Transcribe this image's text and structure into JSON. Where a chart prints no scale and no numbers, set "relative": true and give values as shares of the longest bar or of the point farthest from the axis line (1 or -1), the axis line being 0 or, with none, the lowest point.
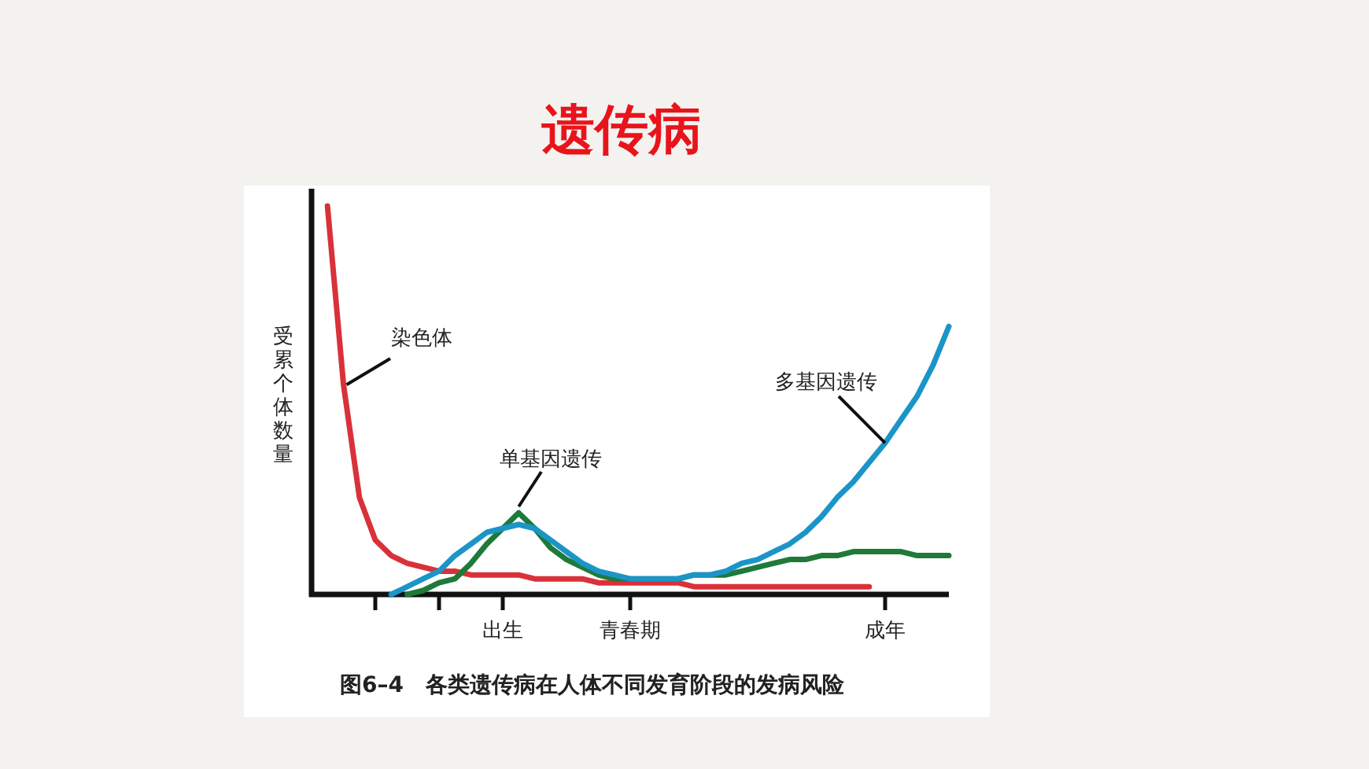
{
  "chart_data": {
    "type": "line",
    "title": "遗传病",
    "ylabel": "受累个体数量",
    "relative": true,
    "categories": [
      null,
      null,
      null,
      null,
      null,
      null,
      null,
      null,
      null,
      null,
      null,
      null,
      "出生",
      null,
      null,
      null,
      null,
      null,
      null,
      null,
      "青春期",
      null,
      null,
      null,
      null,
      null,
      null,
      null,
      null,
      null,
      null,
      null,
      null,
      null,
      null,
      null,
      "成年",
      null,
      null,
      null,
      null
    ],
    "series": [
      {
        "name": "染色体",
        "color": "#d9313a",
        "values": [
          null,
          1.0,
          0.54,
          0.25,
          0.14,
          0.1,
          0.08,
          0.07,
          0.06,
          0.06,
          0.05,
          0.05,
          0.05,
          0.05,
          0.04,
          0.04,
          0.04,
          0.04,
          0.03,
          0.03,
          0.03,
          0.03,
          0.03,
          0.03,
          0.02,
          0.02,
          0.02,
          0.02,
          0.02,
          0.02,
          0.02,
          0.02,
          0.02,
          0.02,
          0.02,
          0.02,
          null,
          null,
          null,
          null,
          null
        ]
      },
      {
        "name": "单基因遗传",
        "color": "#1f7a3a",
        "values": [
          null,
          null,
          null,
          null,
          null,
          null,
          0.0,
          0.01,
          0.03,
          0.04,
          0.08,
          0.13,
          0.17,
          0.21,
          0.17,
          0.12,
          0.09,
          0.07,
          0.05,
          0.04,
          0.04,
          0.04,
          0.04,
          0.04,
          0.05,
          0.05,
          0.05,
          0.06,
          0.07,
          0.08,
          0.09,
          0.09,
          0.1,
          0.1,
          0.11,
          0.11,
          0.11,
          0.11,
          0.1,
          0.1,
          0.1
        ]
      },
      {
        "name": "多基因遗传",
        "color": "#1b95c8",
        "values": [
          null,
          null,
          null,
          null,
          null,
          0.0,
          0.02,
          0.04,
          0.06,
          0.1,
          0.13,
          0.16,
          0.17,
          0.18,
          0.17,
          0.14,
          0.11,
          0.08,
          0.06,
          0.05,
          0.04,
          0.04,
          0.04,
          0.04,
          0.05,
          0.05,
          0.06,
          0.08,
          0.09,
          0.11,
          0.13,
          0.16,
          0.2,
          0.25,
          0.29,
          0.34,
          0.39,
          0.45,
          0.51,
          0.59,
          0.69
        ]
      }
    ],
    "annotations": [
      "图6–4　各类遗传病在人体不同发育阶段的发病风险"
    ]
  }
}
